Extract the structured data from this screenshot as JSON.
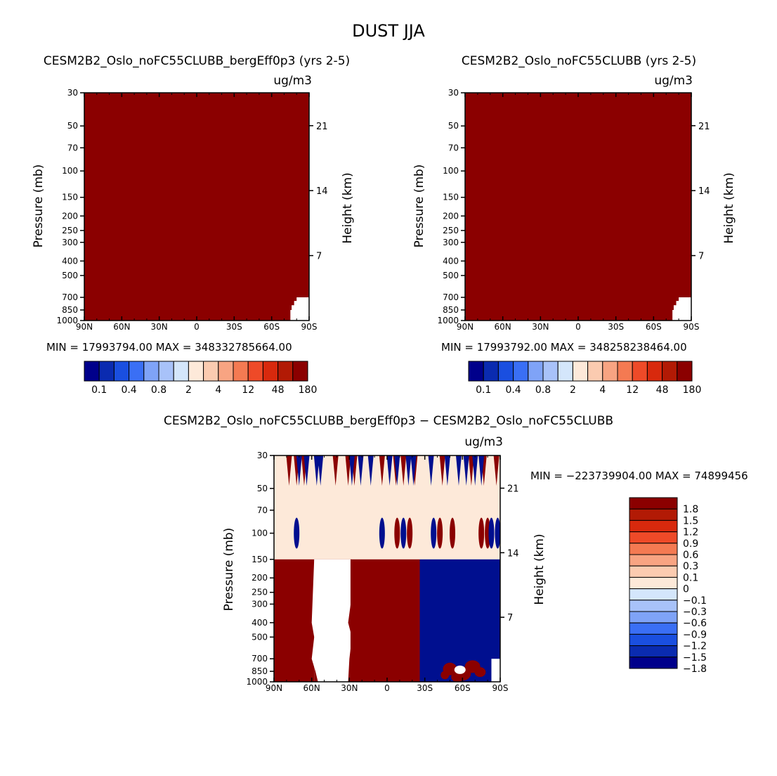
{
  "figure": {
    "title": "DUST JJA"
  },
  "colors": {
    "background": "#ffffff",
    "frame": "#000000",
    "saturated_red": "#8b0000",
    "saturated_blue": "#000f8f",
    "near_zero": "#fde9d9",
    "missing": "#ffffff",
    "abs_palette": [
      "#00008b",
      "#0a2bb0",
      "#1a4fe0",
      "#3a6ff5",
      "#7fa3f7",
      "#a8c2f9",
      "#d4e6fb",
      "#fde9d9",
      "#fbcbb0",
      "#f8a482",
      "#f47a52",
      "#ee4a28",
      "#d8290d",
      "#b21a05",
      "#8b0000"
    ],
    "diff_palette": [
      "#00008b",
      "#0a2bb0",
      "#1a4fe0",
      "#3a6ff5",
      "#7fa3f7",
      "#a8c2f9",
      "#d4e6fb",
      "#fde9d9",
      "#fbcbb0",
      "#f8a482",
      "#f47a52",
      "#ee4a28",
      "#d8290d",
      "#b21a05",
      "#8b0000"
    ]
  },
  "chart_data": [
    {
      "id": "panel1",
      "type": "heatmap",
      "title": "CESM2B2_Oslo_noFC55CLUBB_bergEff0p3 (yrs 2-5)",
      "units": "ug/m3",
      "ylabel": "Pressure (mb)",
      "y2label": "Height (km)",
      "xlim": [
        90,
        -90
      ],
      "ylim_pressure": [
        1000,
        30
      ],
      "x_ticks": [
        "90N",
        "60N",
        "30N",
        "0",
        "30S",
        "60S",
        "90S"
      ],
      "x_tick_values": [
        90,
        60,
        30,
        0,
        -30,
        -60,
        -90
      ],
      "p_ticks": [
        30,
        50,
        70,
        100,
        150,
        200,
        250,
        300,
        400,
        500,
        700,
        850,
        1000
      ],
      "z_ticks": [
        21,
        14,
        7
      ],
      "min_max": "MIN = 17993794.00   MAX = 348332785664.00",
      "colorbar_labels": [
        "0.1",
        "0.4",
        "0.8",
        "2",
        "4",
        "12",
        "48",
        "180"
      ],
      "field": "nearly all values exceed 180 ug/m3 (saturated); data missing below ~700 mb south of ~84S"
    },
    {
      "id": "panel2",
      "type": "heatmap",
      "title": "CESM2B2_Oslo_noFC55CLUBB (yrs 2-5)",
      "units": "ug/m3",
      "ylabel": "Pressure (mb)",
      "y2label": "Height (km)",
      "xlim": [
        90,
        -90
      ],
      "ylim_pressure": [
        1000,
        30
      ],
      "x_ticks": [
        "90N",
        "60N",
        "30N",
        "0",
        "30S",
        "60S",
        "90S"
      ],
      "x_tick_values": [
        90,
        60,
        30,
        0,
        -30,
        -60,
        -90
      ],
      "p_ticks": [
        30,
        50,
        70,
        100,
        150,
        200,
        250,
        300,
        400,
        500,
        700,
        850,
        1000
      ],
      "z_ticks": [
        21,
        14,
        7
      ],
      "min_max": "MIN = 17993792.00   MAX = 348258238464.00",
      "colorbar_labels": [
        "0.1",
        "0.4",
        "0.8",
        "2",
        "4",
        "12",
        "48",
        "180"
      ],
      "field": "nearly all values exceed 180 ug/m3 (saturated); data missing below ~700 mb south of ~84S"
    },
    {
      "id": "panel3",
      "type": "heatmap",
      "title": "CESM2B2_Oslo_noFC55CLUBB_bergEff0p3 − CESM2B2_Oslo_noFC55CLUBB",
      "units": "ug/m3",
      "ylabel": "Pressure (mb)",
      "y2label": "Height (km)",
      "xlim": [
        90,
        -90
      ],
      "ylim_pressure": [
        1000,
        30
      ],
      "x_ticks": [
        "90N",
        "60N",
        "30N",
        "0",
        "30S",
        "60S",
        "90S"
      ],
      "x_tick_values": [
        90,
        60,
        30,
        0,
        -30,
        -60,
        -90
      ],
      "p_ticks": [
        30,
        50,
        70,
        100,
        150,
        200,
        250,
        300,
        400,
        500,
        700,
        850,
        1000
      ],
      "z_ticks": [
        21,
        14,
        7
      ],
      "min_max": "MIN = −223739904.00   MAX = 74899456",
      "colorbar_labels": [
        "1.8",
        "1.5",
        "1.2",
        "0.9",
        "0.6",
        "0.3",
        "0.1",
        "0",
        "−0.1",
        "−0.3",
        "−0.6",
        "−0.9",
        "−1.2",
        "−1.5",
        "−1.8"
      ],
      "regions": [
        {
          "lat": [
            90,
            58
          ],
          "p": [
            150,
            1000
          ],
          "value": "> 1.8"
        },
        {
          "lat": [
            58,
            28
          ],
          "p": [
            150,
            1000
          ],
          "value": "missing"
        },
        {
          "lat": [
            28,
            -26
          ],
          "p": [
            150,
            1000
          ],
          "value": "> 1.8"
        },
        {
          "lat": [
            -26,
            -90
          ],
          "p": [
            150,
            1000
          ],
          "value": "< -1.8"
        },
        {
          "lat": [
            90,
            -90
          ],
          "p": [
            30,
            150
          ],
          "value": "-0.1 to 0.1"
        }
      ],
      "spikes_top_pos_lat": [
        78,
        72,
        66,
        41,
        31,
        26,
        4,
        -7,
        -13,
        -22,
        -44,
        -67,
        -77,
        -87
      ],
      "spikes_top_neg_lat": [
        70,
        64,
        56,
        53,
        28,
        21,
        13,
        -2,
        -8,
        -17,
        -21,
        -35,
        -48,
        -57,
        -63,
        -70,
        -75
      ],
      "lenses_100mb_pos_lat": [
        -8,
        -18,
        -42,
        -52,
        -75,
        -80
      ],
      "lenses_100mb_neg_lat": [
        72,
        4,
        -13,
        -37,
        -83,
        -88
      ]
    }
  ]
}
